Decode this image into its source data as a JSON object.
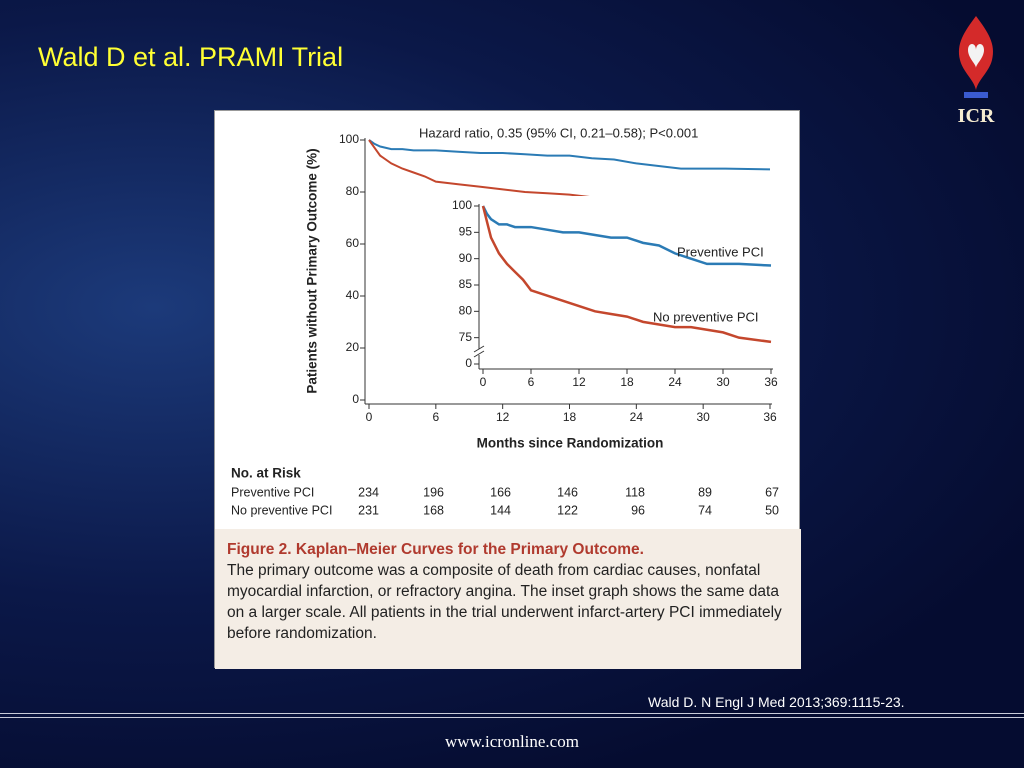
{
  "slide": {
    "title": "Wald D et al. PRAMI Trial",
    "logo": "ICR",
    "citation": "Wald D. N Engl J Med 2013;369:1115-23.",
    "footer": "www.icronline.com"
  },
  "chart_data": {
    "type": "line",
    "annotation": "Hazard ratio, 0.35 (95% CI, 0.21–0.58); P<0.001",
    "x_label": "Months since Randomization",
    "y_label": "Patients without Primary Outcome (%)",
    "xlim": [
      0,
      36
    ],
    "xticks": [
      0,
      6,
      12,
      18,
      24,
      30,
      36
    ],
    "ylim": [
      0,
      100
    ],
    "yticks": [
      0,
      20,
      40,
      60,
      80,
      100
    ],
    "x": [
      0,
      0.5,
      1,
      2,
      3,
      4,
      5,
      6,
      8,
      10,
      12,
      14,
      16,
      18,
      20,
      22,
      24,
      26,
      28,
      30,
      32,
      36
    ],
    "series": [
      {
        "name": "Preventive PCI",
        "color": "#2b7bb5",
        "values": [
          100,
          98.5,
          97.5,
          96.5,
          96.5,
          96,
          96,
          96,
          95.5,
          95,
          95,
          94.5,
          94,
          94,
          93,
          92.5,
          91,
          90,
          89,
          89,
          89,
          88.7
        ],
        "at_risk": [
          234,
          196,
          166,
          146,
          118,
          89,
          67
        ]
      },
      {
        "name": "No preventive PCI",
        "color": "#c4472d",
        "values": [
          100,
          97,
          94,
          91,
          89,
          87.5,
          86,
          84,
          83,
          82,
          81,
          80,
          79.5,
          79,
          78,
          77.5,
          77,
          77,
          76.5,
          76,
          75,
          74.2
        ],
        "at_risk": [
          231,
          168,
          144,
          122,
          96,
          74,
          50
        ]
      }
    ],
    "inset": {
      "xlim": [
        0,
        36
      ],
      "xticks": [
        0,
        6,
        12,
        18,
        24,
        30,
        36
      ],
      "ylim": [
        70,
        100
      ],
      "yticks": [
        0,
        75,
        80,
        85,
        90,
        95,
        100
      ],
      "axis_break": true
    },
    "risk_title": "No. at Risk"
  },
  "caption": {
    "label": "Figure 2. Kaplan–Meier Curves for the Primary Outcome.",
    "text": "The primary outcome was a composite of death from cardiac causes, nonfatal myocardial infarction, or refractory angina. The inset graph shows the same data on a larger scale. All patients in the trial underwent infarct-artery PCI immediately before randomization."
  }
}
